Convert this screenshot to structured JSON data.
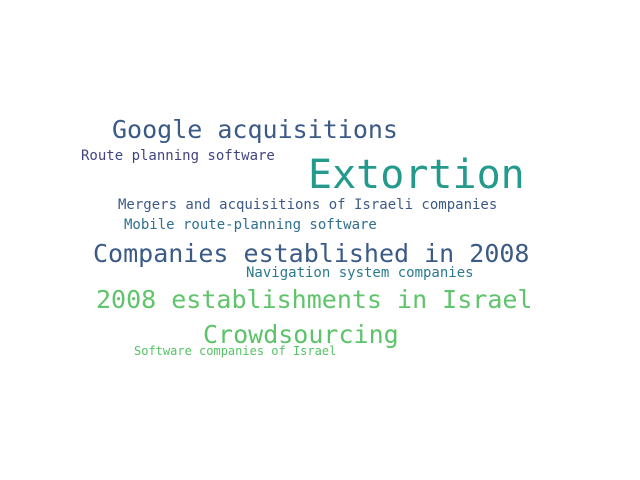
{
  "word_cloud": {
    "words": [
      {
        "text": "Google acquisitions",
        "color": "#3b5a86"
      },
      {
        "text": "Route planning software",
        "color": "#41457f"
      },
      {
        "text": "Extortion",
        "color": "#239a8c"
      },
      {
        "text": "Mergers and acquisitions of Israeli companies",
        "color": "#3c5a89"
      },
      {
        "text": "Mobile route-planning software",
        "color": "#2f6f8f"
      },
      {
        "text": "Companies established in 2008",
        "color": "#3b5a86"
      },
      {
        "text": "Navigation system companies",
        "color": "#2a7a8e"
      },
      {
        "text": "2008 establishments in Israel",
        "color": "#5fc46b"
      },
      {
        "text": "Crowdsourcing",
        "color": "#5dc36a"
      },
      {
        "text": "Software companies of Israel",
        "color": "#56c266"
      }
    ]
  }
}
